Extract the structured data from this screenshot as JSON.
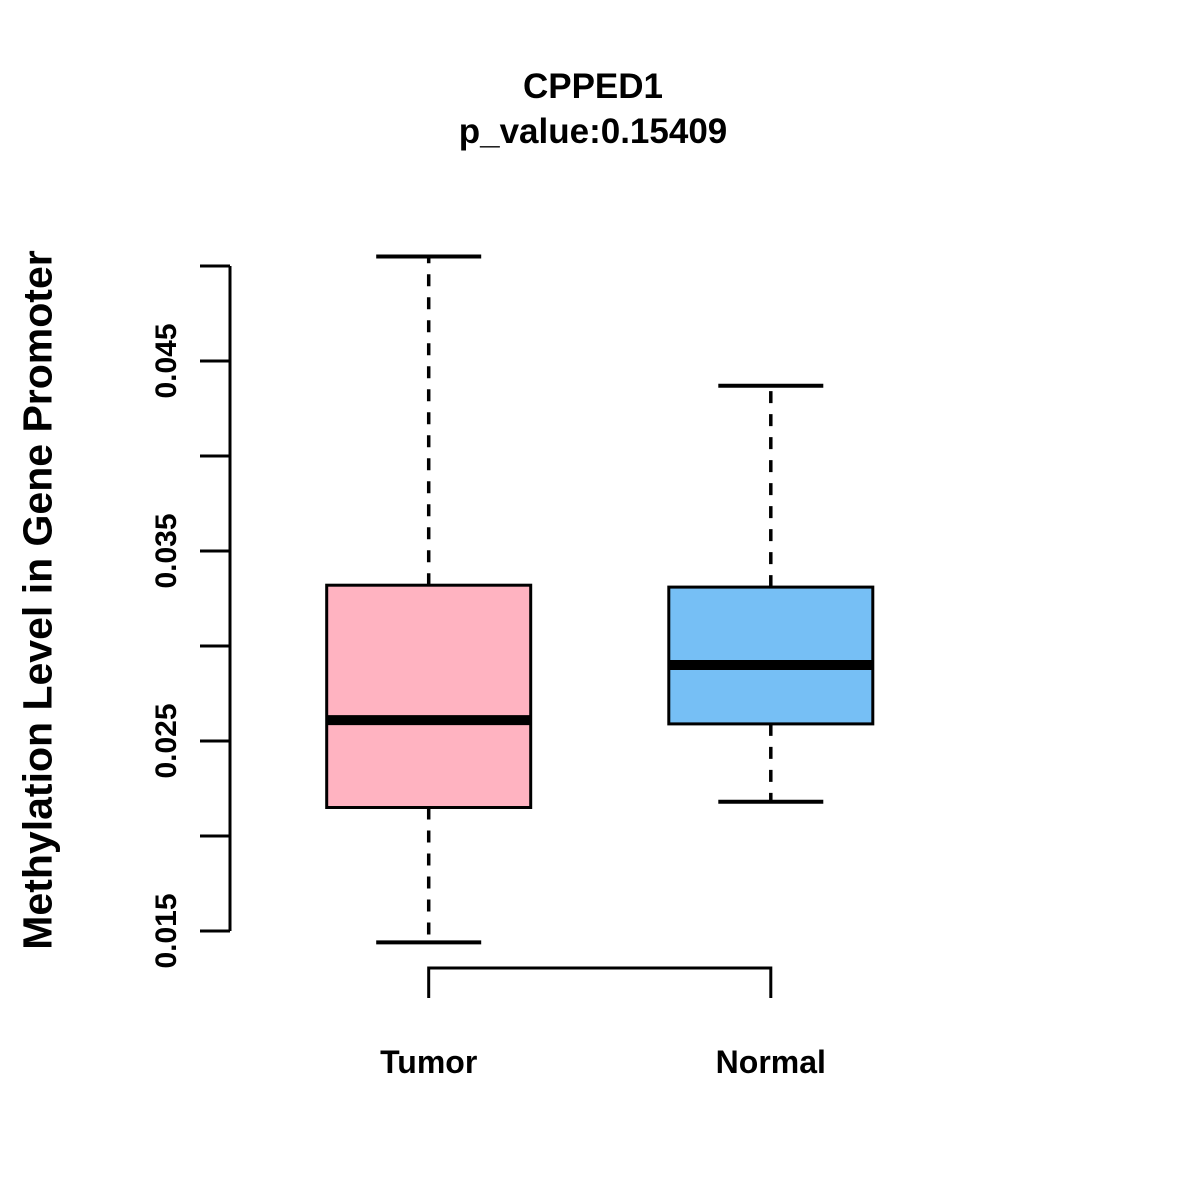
{
  "chart_data": {
    "type": "boxplot",
    "title": "CPPED1",
    "subtitle": "p_value:0.15409",
    "ylabel": "Methylation Level in Gene Promoter",
    "categories": [
      "Tumor",
      "Normal"
    ],
    "series": [
      {
        "name": "Tumor",
        "fill_color": "#FFB3C1",
        "stats": {
          "whisker_low": 0.0144,
          "q1": 0.0215,
          "median": 0.0261,
          "q3": 0.0332,
          "whisker_high": 0.0505
        }
      },
      {
        "name": "Normal",
        "fill_color": "#76BFF5",
        "stats": {
          "whisker_low": 0.0218,
          "q1": 0.0259,
          "median": 0.029,
          "q3": 0.0331,
          "whisker_high": 0.0437
        }
      }
    ],
    "y_axis": {
      "range": [
        0.015,
        0.05
      ],
      "tick_step": 0.005,
      "tick_values": [
        0.015,
        0.02,
        0.025,
        0.03,
        0.035,
        0.04,
        0.045,
        0.05
      ],
      "labeled_ticks": [
        {
          "value": 0.015,
          "label": "0.015"
        },
        {
          "value": 0.025,
          "label": "0.025"
        },
        {
          "value": 0.035,
          "label": "0.035"
        },
        {
          "value": 0.045,
          "label": "0.045"
        }
      ]
    },
    "line_color": "#000000",
    "background_color": "#FFFFFF",
    "comparison_bracket": {
      "from": "Tumor",
      "to": "Normal"
    },
    "legend": "none",
    "grid": "off"
  }
}
